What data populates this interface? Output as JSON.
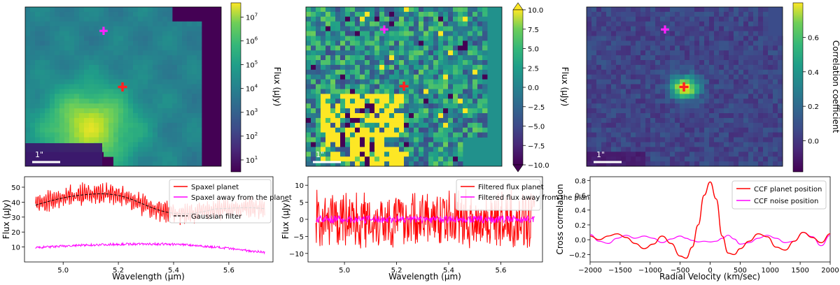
{
  "chart_data": [
    {
      "type": "heatmap",
      "panel": "top-left",
      "colorbar": {
        "label": "Flux (µJy)",
        "scale": "log",
        "ticks": [
          "10^1",
          "10^2",
          "10^3",
          "10^4",
          "10^5",
          "10^6",
          "10^7"
        ],
        "tick_values": [
          1,
          2,
          3,
          4,
          5,
          6,
          7
        ],
        "range": [
          0.5,
          7.6
        ]
      },
      "markers": [
        {
          "name": "planet",
          "color": "#ff2222",
          "symbol": "+"
        },
        {
          "name": "away",
          "color": "#ff22ff",
          "symbol": "+"
        }
      ],
      "scalebar_label": "1\""
    },
    {
      "type": "heatmap",
      "panel": "top-middle",
      "colorbar": {
        "label": "Flux (µJy)",
        "scale": "linear",
        "ticks": [
          "10.0",
          "7.5",
          "5.0",
          "2.5",
          "0.0",
          "−2.5",
          "−5.0",
          "−7.5",
          "−10.0"
        ],
        "tick_values": [
          10,
          7.5,
          5,
          2.5,
          0,
          -2.5,
          -5,
          -7.5,
          -10
        ],
        "range": [
          -10,
          10
        ],
        "extend": "both"
      },
      "markers": [
        {
          "name": "planet",
          "color": "#ff2222",
          "symbol": "+"
        },
        {
          "name": "away",
          "color": "#ff22ff",
          "symbol": "+"
        }
      ],
      "scalebar_label": "1\""
    },
    {
      "type": "heatmap",
      "panel": "top-right",
      "colorbar": {
        "label": "Correlation coefficient",
        "scale": "linear",
        "ticks": [
          "0.6",
          "0.4",
          "0.2",
          "0.0"
        ],
        "tick_values": [
          0.6,
          0.4,
          0.2,
          0.0
        ],
        "range": [
          -0.18,
          0.8
        ]
      },
      "markers": [
        {
          "name": "planet",
          "color": "#ff2222",
          "symbol": "+"
        },
        {
          "name": "away",
          "color": "#ff22ff",
          "symbol": "+"
        }
      ],
      "scalebar_label": "1\""
    },
    {
      "type": "line",
      "panel": "bottom-left",
      "xlabel": "Wavelength (µm)",
      "ylabel": "Flux (µJy)",
      "xlim": [
        4.86,
        5.76
      ],
      "ylim": [
        0,
        57
      ],
      "xticks": [
        "5.0",
        "5.2",
        "5.4",
        "5.6"
      ],
      "xtick_values": [
        5.0,
        5.2,
        5.4,
        5.6
      ],
      "yticks": [
        "10",
        "20",
        "30",
        "40",
        "50"
      ],
      "ytick_values": [
        10,
        20,
        30,
        40,
        50
      ],
      "series": [
        {
          "name": "Spaxel planet",
          "color": "#ff0000",
          "x_range": [
            4.9,
            5.73
          ],
          "trend": "smoothed mean 35–46 µJy, noisy ±8"
        },
        {
          "name": "Spaxel away from the planet",
          "color": "#ff00ff",
          "x_range": [
            4.9,
            5.73
          ],
          "trend": "smooth 7–12 µJy"
        },
        {
          "name": "Gaussian filter",
          "color": "#000000",
          "style": "dashed"
        }
      ],
      "legend_location": "top-right"
    },
    {
      "type": "line",
      "panel": "bottom-middle",
      "xlabel": "Wavelength (µm)",
      "ylabel": "Flux (µJy)",
      "xlim": [
        4.86,
        5.76
      ],
      "ylim": [
        -12.5,
        12.5
      ],
      "xticks": [
        "5.0",
        "5.2",
        "5.4",
        "5.6"
      ],
      "xtick_values": [
        5.0,
        5.2,
        5.4,
        5.6
      ],
      "yticks": [
        "−10",
        "−5",
        "0",
        "5",
        "10"
      ],
      "ytick_values": [
        -10,
        -5,
        0,
        5,
        10
      ],
      "series": [
        {
          "name": "Filtered flux planet",
          "color": "#ff0000",
          "amplitude": "±10"
        },
        {
          "name": "Filtered flux away from the planet",
          "color": "#ff00ff",
          "amplitude": "±1"
        }
      ],
      "legend_location": "top-right"
    },
    {
      "type": "line",
      "panel": "bottom-right",
      "xlabel": "Radial Velocity (km/sec)",
      "ylabel": "Cross correlation",
      "xlim": [
        -2000,
        2000
      ],
      "ylim": [
        -0.3,
        0.85
      ],
      "xticks": [
        "−2000",
        "−1500",
        "−1000",
        "−500",
        "0",
        "500",
        "1000",
        "1500",
        "2000"
      ],
      "xtick_values": [
        -2000,
        -1500,
        -1000,
        -500,
        0,
        500,
        1000,
        1500,
        2000
      ],
      "yticks": [
        "−0.2",
        "0.0",
        "0.2",
        "0.4",
        "0.6",
        "0.8"
      ],
      "ytick_values": [
        -0.2,
        0,
        0.2,
        0.4,
        0.6,
        0.8
      ],
      "series": [
        {
          "name": "CCF planet position",
          "color": "#ff0000",
          "x": [
            -2000,
            -1850,
            -1700,
            -1550,
            -1400,
            -1250,
            -1100,
            -950,
            -800,
            -650,
            -500,
            -400,
            -300,
            -200,
            -100,
            0,
            100,
            200,
            300,
            400,
            500,
            650,
            800,
            950,
            1100,
            1250,
            1400,
            1550,
            1700,
            1850,
            2000
          ],
          "values": [
            0.05,
            0.0,
            0.05,
            0.08,
            0.03,
            -0.05,
            -0.12,
            -0.06,
            0.05,
            -0.05,
            -0.22,
            -0.25,
            -0.1,
            0.2,
            0.6,
            0.78,
            0.55,
            0.05,
            -0.18,
            -0.2,
            -0.12,
            -0.02,
            0.08,
            0.04,
            -0.1,
            -0.14,
            -0.02,
            0.1,
            0.03,
            -0.04,
            0.08
          ]
        },
        {
          "name": "CCF noise position",
          "color": "#ff00ff",
          "x": [
            -2000,
            -1850,
            -1700,
            -1550,
            -1400,
            -1250,
            -1100,
            -950,
            -800,
            -650,
            -500,
            -400,
            -300,
            -200,
            -100,
            0,
            100,
            200,
            300,
            400,
            500,
            650,
            800,
            950,
            1100,
            1250,
            1400,
            1550,
            1700,
            1850,
            2000
          ],
          "values": [
            0.07,
            -0.02,
            -0.05,
            0.02,
            0.06,
            0.02,
            0.05,
            0.02,
            -0.04,
            0.01,
            0.05,
            0.02,
            -0.01,
            -0.03,
            -0.02,
            -0.03,
            -0.02,
            0.02,
            0.06,
            0.01,
            -0.06,
            -0.04,
            0.02,
            0.06,
            0.02,
            -0.04,
            -0.02,
            0.1,
            0.04,
            -0.08,
            0.06
          ]
        }
      ],
      "legend_location": "top-right"
    }
  ]
}
